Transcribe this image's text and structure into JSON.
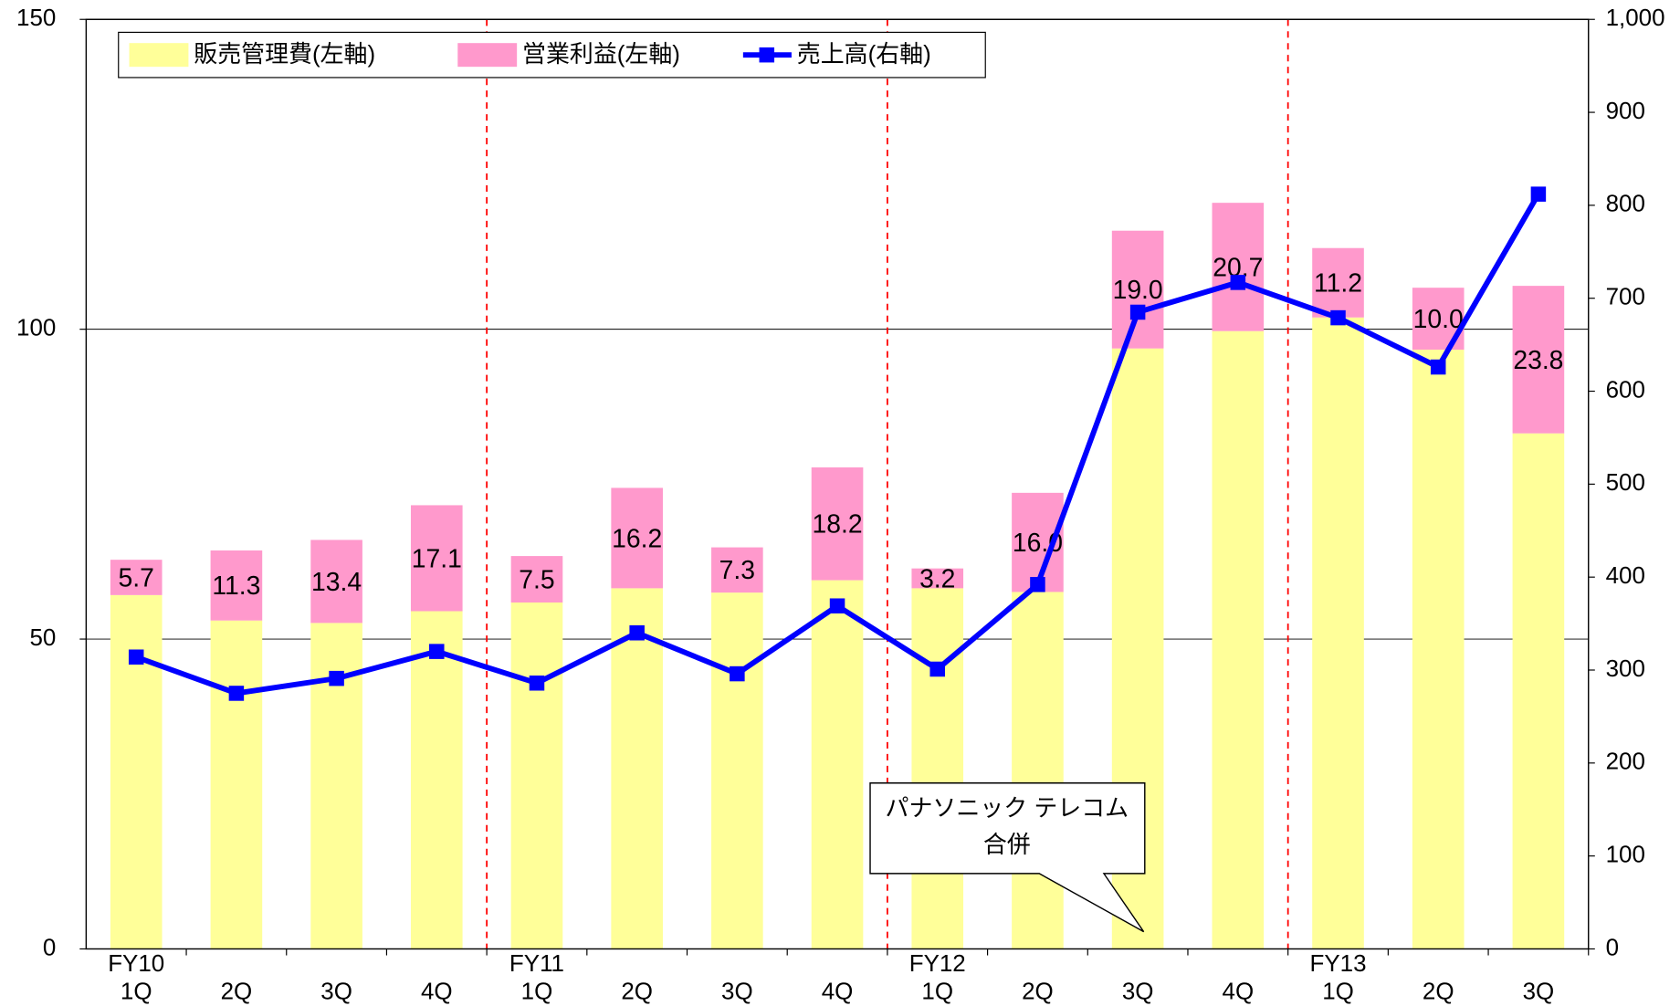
{
  "chart_data": {
    "type": "bar_line",
    "categories": [
      "1Q",
      "2Q",
      "3Q",
      "4Q",
      "1Q",
      "2Q",
      "3Q",
      "4Q",
      "1Q",
      "2Q",
      "3Q",
      "4Q",
      "1Q",
      "2Q",
      "3Q"
    ],
    "category_groups": [
      "FY10",
      null,
      null,
      null,
      "FY11",
      null,
      null,
      null,
      "FY12",
      null,
      null,
      null,
      "FY13",
      null,
      null
    ],
    "series": [
      {
        "name": "販売管理費(左軸)",
        "color": "#ffff99",
        "stack": true,
        "values": [
          57.1,
          53.0,
          52.6,
          54.5,
          55.9,
          58.2,
          57.5,
          59.5,
          58.2,
          57.6,
          96.9,
          99.7,
          101.9,
          96.7,
          83.2
        ]
      },
      {
        "name": "営業利益(左軸)",
        "color": "#ff99cc",
        "stack": true,
        "values": [
          5.7,
          11.3,
          13.4,
          17.1,
          7.5,
          16.2,
          7.3,
          18.2,
          3.2,
          16.0,
          19.0,
          20.7,
          11.2,
          10.0,
          23.8
        ],
        "value_labels": [
          "5.7",
          "11.3",
          "13.4",
          "17.1",
          "7.5",
          "16.2",
          "7.3",
          "18.2",
          "3.2",
          "16.0",
          "19.0",
          "20.7",
          "11.2",
          "10.0",
          "23.8"
        ]
      },
      {
        "name": "売上高(右軸)",
        "color": "#0000ff",
        "axis": "y2",
        "kind": "line",
        "values": [
          314,
          275,
          291,
          320,
          286,
          340,
          296,
          369,
          301,
          392,
          685,
          717,
          679,
          626,
          812
        ]
      }
    ],
    "ylim": [
      0,
      150
    ],
    "yticks": [
      0,
      50,
      100,
      150
    ],
    "y2lim": [
      0,
      1000
    ],
    "y2ticks": [
      0,
      100,
      200,
      300,
      400,
      500,
      600,
      700,
      800,
      900,
      {
        "value": 1000,
        "label": "1,000"
      }
    ],
    "grid": true,
    "legend": "top-left",
    "annotation": [
      "パナソニック テレコム",
      "合併"
    ]
  }
}
